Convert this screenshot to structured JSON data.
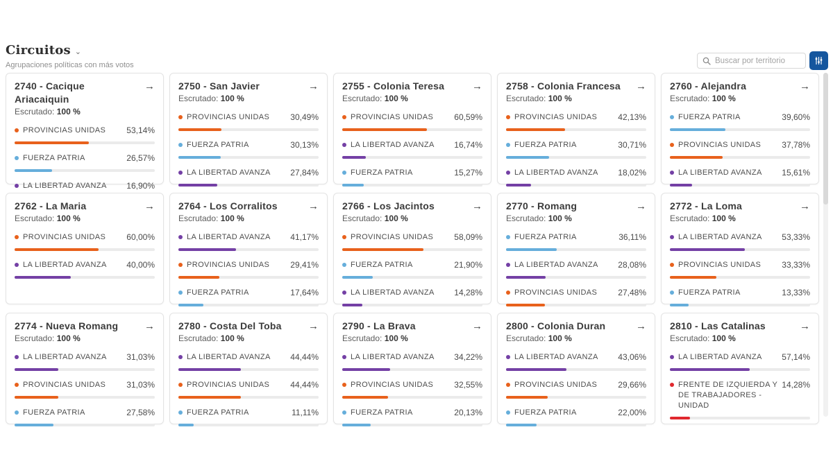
{
  "header": {
    "title": "Circuitos",
    "chevron": "⌄",
    "subtitle": "Agrupaciones políticas con más votos",
    "search": {
      "placeholder": "Buscar por territorio"
    }
  },
  "labels": {
    "escrutado": "Escrutado:",
    "arrow": "→"
  },
  "ui_colors": {
    "accent_button": "#15569e",
    "bar_track": "#ebebeb",
    "card_border": "#e3e3e3"
  },
  "party_colors": {
    "PROVINCIAS UNIDAS": "#e8611c",
    "FUERZA PATRIA": "#66aedb",
    "LA LIBERTAD AVANZA": "#7440a5",
    "FRENTE DE IZQUIERDA Y DE TRABAJADORES - UNIDAD": "#e0282e"
  },
  "cards": [
    {
      "title": "2740 - Cacique Ariacaiquin",
      "escrutado": "100 %",
      "rows": [
        {
          "party": "PROVINCIAS UNIDAS",
          "pct_label": "53,14%",
          "value": 53.14
        },
        {
          "party": "FUERZA PATRIA",
          "pct_label": "26,57%",
          "value": 26.57
        },
        {
          "party": "LA LIBERTAD AVANZA",
          "pct_label": "16,90%",
          "value": 16.9
        }
      ]
    },
    {
      "title": "2750 - San Javier",
      "escrutado": "100 %",
      "rows": [
        {
          "party": "PROVINCIAS UNIDAS",
          "pct_label": "30,49%",
          "value": 30.49
        },
        {
          "party": "FUERZA PATRIA",
          "pct_label": "30,13%",
          "value": 30.13
        },
        {
          "party": "LA LIBERTAD AVANZA",
          "pct_label": "27,84%",
          "value": 27.84
        }
      ]
    },
    {
      "title": "2755 - Colonia Teresa",
      "escrutado": "100 %",
      "rows": [
        {
          "party": "PROVINCIAS UNIDAS",
          "pct_label": "60,59%",
          "value": 60.59
        },
        {
          "party": "LA LIBERTAD AVANZA",
          "pct_label": "16,74%",
          "value": 16.74
        },
        {
          "party": "FUERZA PATRIA",
          "pct_label": "15,27%",
          "value": 15.27
        }
      ]
    },
    {
      "title": "2758 - Colonia Francesa",
      "escrutado": "100 %",
      "rows": [
        {
          "party": "PROVINCIAS UNIDAS",
          "pct_label": "42,13%",
          "value": 42.13
        },
        {
          "party": "FUERZA PATRIA",
          "pct_label": "30,71%",
          "value": 30.71
        },
        {
          "party": "LA LIBERTAD AVANZA",
          "pct_label": "18,02%",
          "value": 18.02
        }
      ]
    },
    {
      "title": "2760 - Alejandra",
      "escrutado": "100 %",
      "rows": [
        {
          "party": "FUERZA PATRIA",
          "pct_label": "39,60%",
          "value": 39.6
        },
        {
          "party": "PROVINCIAS UNIDAS",
          "pct_label": "37,78%",
          "value": 37.78
        },
        {
          "party": "LA LIBERTAD AVANZA",
          "pct_label": "15,61%",
          "value": 15.61
        }
      ]
    },
    {
      "title": "2762 - La Maria",
      "escrutado": "100 %",
      "rows": [
        {
          "party": "PROVINCIAS UNIDAS",
          "pct_label": "60,00%",
          "value": 60.0
        },
        {
          "party": "LA LIBERTAD AVANZA",
          "pct_label": "40,00%",
          "value": 40.0
        }
      ]
    },
    {
      "title": "2764 - Los Corralitos",
      "escrutado": "100 %",
      "rows": [
        {
          "party": "LA LIBERTAD AVANZA",
          "pct_label": "41,17%",
          "value": 41.17
        },
        {
          "party": "PROVINCIAS UNIDAS",
          "pct_label": "29,41%",
          "value": 29.41
        },
        {
          "party": "FUERZA PATRIA",
          "pct_label": "17,64%",
          "value": 17.64
        }
      ]
    },
    {
      "title": "2766 - Los Jacintos",
      "escrutado": "100 %",
      "rows": [
        {
          "party": "PROVINCIAS UNIDAS",
          "pct_label": "58,09%",
          "value": 58.09
        },
        {
          "party": "FUERZA PATRIA",
          "pct_label": "21,90%",
          "value": 21.9
        },
        {
          "party": "LA LIBERTAD AVANZA",
          "pct_label": "14,28%",
          "value": 14.28
        }
      ]
    },
    {
      "title": "2770 - Romang",
      "escrutado": "100 %",
      "rows": [
        {
          "party": "FUERZA PATRIA",
          "pct_label": "36,11%",
          "value": 36.11
        },
        {
          "party": "LA LIBERTAD AVANZA",
          "pct_label": "28,08%",
          "value": 28.08
        },
        {
          "party": "PROVINCIAS UNIDAS",
          "pct_label": "27,48%",
          "value": 27.48
        }
      ]
    },
    {
      "title": "2772 - La Loma",
      "escrutado": "100 %",
      "rows": [
        {
          "party": "LA LIBERTAD AVANZA",
          "pct_label": "53,33%",
          "value": 53.33
        },
        {
          "party": "PROVINCIAS UNIDAS",
          "pct_label": "33,33%",
          "value": 33.33
        },
        {
          "party": "FUERZA PATRIA",
          "pct_label": "13,33%",
          "value": 13.33
        }
      ]
    },
    {
      "title": "2774 - Nueva Romang",
      "escrutado": "100 %",
      "rows": [
        {
          "party": "LA LIBERTAD AVANZA",
          "pct_label": "31,03%",
          "value": 31.03
        },
        {
          "party": "PROVINCIAS UNIDAS",
          "pct_label": "31,03%",
          "value": 31.03
        },
        {
          "party": "FUERZA PATRIA",
          "pct_label": "27,58%",
          "value": 27.58
        }
      ]
    },
    {
      "title": "2780 - Costa Del Toba",
      "escrutado": "100 %",
      "rows": [
        {
          "party": "LA LIBERTAD AVANZA",
          "pct_label": "44,44%",
          "value": 44.44
        },
        {
          "party": "PROVINCIAS UNIDAS",
          "pct_label": "44,44%",
          "value": 44.44
        },
        {
          "party": "FUERZA PATRIA",
          "pct_label": "11,11%",
          "value": 11.11
        }
      ]
    },
    {
      "title": "2790 - La Brava",
      "escrutado": "100 %",
      "rows": [
        {
          "party": "LA LIBERTAD AVANZA",
          "pct_label": "34,22%",
          "value": 34.22
        },
        {
          "party": "PROVINCIAS UNIDAS",
          "pct_label": "32,55%",
          "value": 32.55
        },
        {
          "party": "FUERZA PATRIA",
          "pct_label": "20,13%",
          "value": 20.13
        }
      ]
    },
    {
      "title": "2800 - Colonia Duran",
      "escrutado": "100 %",
      "rows": [
        {
          "party": "LA LIBERTAD AVANZA",
          "pct_label": "43,06%",
          "value": 43.06
        },
        {
          "party": "PROVINCIAS UNIDAS",
          "pct_label": "29,66%",
          "value": 29.66
        },
        {
          "party": "FUERZA PATRIA",
          "pct_label": "22,00%",
          "value": 22.0
        }
      ]
    },
    {
      "title": "2810 - Las Catalinas",
      "escrutado": "100 %",
      "rows": [
        {
          "party": "LA LIBERTAD AVANZA",
          "pct_label": "57,14%",
          "value": 57.14
        },
        {
          "party": "FRENTE DE IZQUIERDA Y DE TRABAJADORES - UNIDAD",
          "pct_label": "14,28%",
          "value": 14.28
        }
      ]
    }
  ]
}
